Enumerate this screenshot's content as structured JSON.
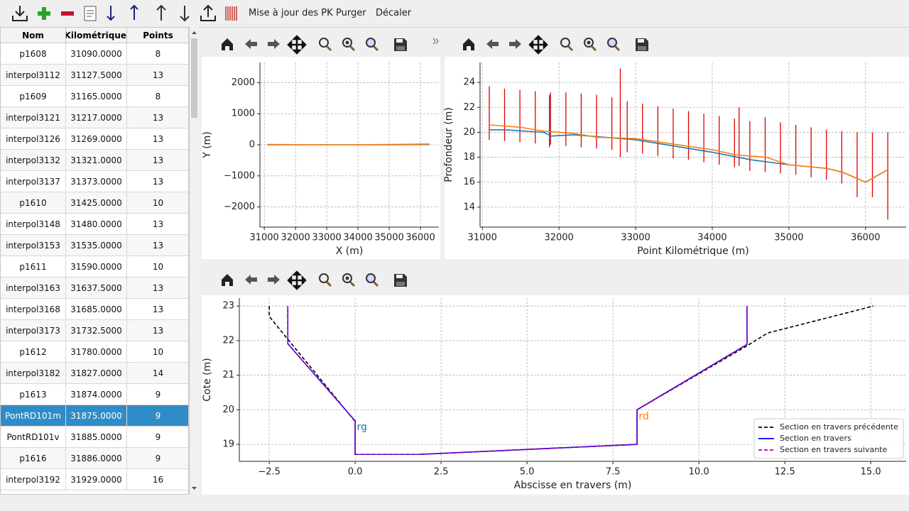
{
  "toolbar": {
    "buttons": [
      "Mise à jour des PK",
      "Purger",
      "Décaler"
    ]
  },
  "table": {
    "columns": [
      "Nom",
      "Point Kilométrique",
      "Points"
    ],
    "selected_row": 17,
    "rows": [
      [
        "p1608",
        "31090.0000",
        8
      ],
      [
        "interpol3112",
        "31127.5000",
        13
      ],
      [
        "p1609",
        "31165.0000",
        8
      ],
      [
        "interpol3121",
        "31217.0000",
        13
      ],
      [
        "interpol3126",
        "31269.0000",
        13
      ],
      [
        "interpol3132",
        "31321.0000",
        13
      ],
      [
        "interpol3137",
        "31373.0000",
        13
      ],
      [
        "p1610",
        "31425.0000",
        10
      ],
      [
        "interpol3148",
        "31480.0000",
        13
      ],
      [
        "interpol3153",
        "31535.0000",
        13
      ],
      [
        "p1611",
        "31590.0000",
        10
      ],
      [
        "interpol3163",
        "31637.5000",
        13
      ],
      [
        "interpol3168",
        "31685.0000",
        13
      ],
      [
        "interpol3173",
        "31732.5000",
        13
      ],
      [
        "p1612",
        "31780.0000",
        10
      ],
      [
        "interpol3182",
        "31827.0000",
        14
      ],
      [
        "p1613",
        "31874.0000",
        9
      ],
      [
        "PontRD101m",
        "31875.0000",
        9
      ],
      [
        "PontRD101v",
        "31885.0000",
        9
      ],
      [
        "p1616",
        "31886.0000",
        9
      ],
      [
        "interpol3192",
        "31929.0000",
        16
      ]
    ]
  },
  "chart_data": [
    {
      "type": "line",
      "x_label": "X (m)",
      "y_label": "Y (m)",
      "grid": true,
      "xlim": [
        30860,
        36590
      ],
      "ylim": [
        -2650,
        2650
      ],
      "xticks": [
        31000,
        32000,
        33000,
        34000,
        35000,
        36000
      ],
      "yticks": [
        {
          "value": -2000,
          "label": "−2000"
        },
        {
          "value": -1000,
          "label": "−1000"
        },
        0,
        1000,
        2000
      ],
      "series": [
        {
          "color": "#1f77b4",
          "x": [
            31090,
            32000,
            33000,
            34000,
            35000,
            36290
          ],
          "values": [
            0,
            0,
            0,
            0,
            0,
            10
          ]
        },
        {
          "color": "#ff7f0e",
          "x": [
            31090,
            32000,
            33000,
            34000,
            35000,
            36290
          ],
          "values": [
            10,
            5,
            0,
            0,
            10,
            25
          ]
        }
      ]
    },
    {
      "type": "line",
      "x_label": "Point Kilométrique (m)",
      "y_label": "Profondeur (m)",
      "grid": true,
      "xlim": [
        30970,
        36530
      ],
      "ylim": [
        12.4,
        25.6
      ],
      "xticks": [
        31000,
        32000,
        33000,
        34000,
        35000,
        36000
      ],
      "yticks": [
        14,
        16,
        18,
        20,
        22,
        24
      ],
      "ranges": [
        {
          "color": "#e00000",
          "x": [
            31090,
            31290,
            31490,
            31690,
            31890,
            32090,
            32290,
            32490,
            32690,
            32800,
            32890,
            33090,
            33290,
            33490,
            33690,
            33890,
            34090,
            34290,
            34350,
            34490,
            34690,
            34890,
            35090,
            35290,
            35490,
            35690,
            35890,
            36090,
            36290
          ],
          "low": [
            19.4,
            19.3,
            19.2,
            19.1,
            19.0,
            18.9,
            18.8,
            18.7,
            18.6,
            18.0,
            18.4,
            18.3,
            18.1,
            17.9,
            17.8,
            17.6,
            17.4,
            17.2,
            17.3,
            16.9,
            16.8,
            16.7,
            16.6,
            16.4,
            16.2,
            15.9,
            14.8,
            14.8,
            13.0
          ],
          "high": [
            23.7,
            23.5,
            23.4,
            23.3,
            23.2,
            23.2,
            23.1,
            23.0,
            22.8,
            25.1,
            22.5,
            22.3,
            22.1,
            21.9,
            21.7,
            21.5,
            21.3,
            21.1,
            22.0,
            20.9,
            21.2,
            20.8,
            20.6,
            20.4,
            20.2,
            20.1,
            20.0,
            20.0,
            20.0
          ]
        },
        {
          "color": "#3a2fa0",
          "x": [
            31875
          ],
          "low": [
            18.8
          ],
          "high": [
            23.0
          ]
        }
      ],
      "series": [
        {
          "color": "#1f77b4",
          "x": [
            31090,
            31300,
            31800,
            31900,
            32200,
            33000,
            34000,
            34500,
            35000,
            35500,
            35700,
            36000,
            36290
          ],
          "values": [
            20.2,
            20.2,
            20.0,
            19.7,
            19.8,
            19.4,
            18.4,
            17.8,
            17.4,
            17.1,
            16.8,
            16.0,
            17.0
          ]
        },
        {
          "color": "#ff7f0e",
          "x": [
            31090,
            31500,
            31800,
            32200,
            32500,
            33000,
            34000,
            34300,
            34700,
            35000,
            35500,
            35700,
            36000,
            36290
          ],
          "values": [
            20.6,
            20.4,
            20.1,
            19.9,
            19.6,
            19.5,
            18.6,
            18.2,
            18.0,
            17.4,
            17.1,
            16.8,
            16.0,
            17.0
          ]
        }
      ]
    },
    {
      "type": "line",
      "x_label": "Abscisse en travers (m)",
      "y_label": "Cote (m)",
      "grid": true,
      "legend": "lower right",
      "xlim": [
        -3.37,
        16.03
      ],
      "ylim": [
        18.51,
        23.23
      ],
      "xticks": [
        {
          "value": -2.5,
          "label": "−2.5"
        },
        {
          "value": 0,
          "label": "0.0"
        },
        {
          "value": 2.5,
          "label": "2.5"
        },
        {
          "value": 5,
          "label": "5.0"
        },
        {
          "value": 7.5,
          "label": "7.5"
        },
        {
          "value": 10,
          "label": "10.0"
        },
        {
          "value": 12.5,
          "label": "12.5"
        },
        {
          "value": 15,
          "label": "15.0"
        }
      ],
      "yticks": [
        19,
        20,
        21,
        22,
        23
      ],
      "series": [
        {
          "name": "Section en travers précédente",
          "color": "#000000",
          "linestyle": "dashed",
          "x": [
            -2.5,
            -2.5,
            -1.96,
            0,
            0,
            1.86,
            8.2,
            8.2,
            11.4,
            12.0,
            15.08
          ],
          "values": [
            23.0,
            22.7,
            22.04,
            19.66,
            18.71,
            18.71,
            19.0,
            20.0,
            21.85,
            22.22,
            23.0
          ]
        },
        {
          "name": "Section en travers",
          "color": "#0000ff",
          "linestyle": "solid",
          "x": [
            -1.96,
            -1.96,
            0,
            0,
            1.86,
            8.2,
            8.2,
            11.4,
            11.4
          ],
          "values": [
            23.0,
            21.91,
            19.68,
            18.71,
            18.71,
            19.0,
            20.0,
            21.89,
            23.0
          ]
        },
        {
          "name": "Section en travers suivante",
          "color": "#aa00aa",
          "linestyle": "dashed",
          "x": [
            -1.96,
            -1.96,
            0,
            0,
            1.86,
            8.2,
            8.2,
            11.4,
            11.4
          ],
          "values": [
            23.0,
            21.91,
            19.68,
            18.71,
            18.71,
            19.0,
            20.0,
            21.89,
            23.0
          ]
        }
      ],
      "annotations": [
        {
          "text": "rg",
          "x": 0.05,
          "y": 19.5,
          "color": "#1f77b4"
        },
        {
          "text": "rd",
          "x": 8.25,
          "y": 19.8,
          "color": "#ff7f0e"
        }
      ]
    }
  ]
}
